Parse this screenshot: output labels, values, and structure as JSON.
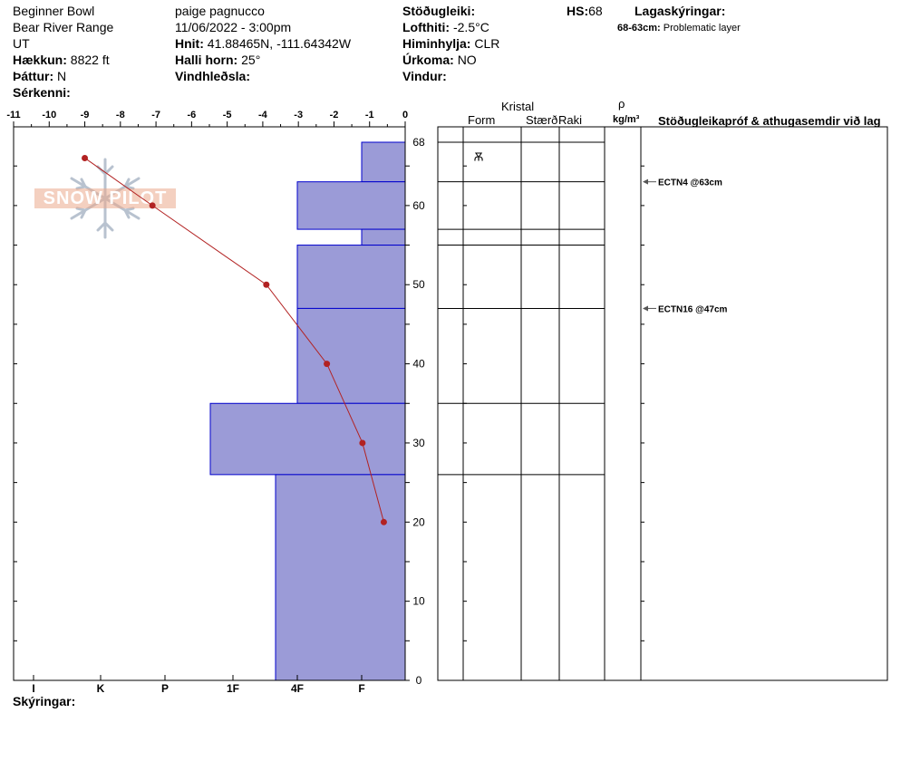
{
  "header": {
    "location": "Beginner Bowl",
    "range": "Bear River Range",
    "state": "UT",
    "elevation_label": "Hækkun:",
    "elevation": "8822 ft",
    "aspect_label": "Þáttur:",
    "aspect": "N",
    "features_label": "Sérkenni:",
    "observer": "paige pagnucco",
    "datetime": "11/06/2022 - 3:00pm",
    "coords_label": "Hnit:",
    "coords": "41.88465N, -111.64342W",
    "slope_label": "Halli horn:",
    "slope": "25°",
    "wind_loading_label": "Vindhleðsla:",
    "stability_label": "Stöðugleiki:",
    "air_temp_label": "Lofthiti:",
    "air_temp": "-2.5°C",
    "sky_label": "Himinhylja:",
    "sky": "CLR",
    "precip_label": "Úrkoma:",
    "precip": "NO",
    "wind_label": "Vindur:",
    "hs_label": "HS:",
    "hs": "68",
    "layer_notes_label": "Lagaskýringar:",
    "layer_note_range": "68-63cm:",
    "layer_note_text": "Problematic layer"
  },
  "logo": {
    "text": "SNOW PILOT"
  },
  "columns": {
    "crystal": "Kristal",
    "form": "Form",
    "size": "Stærð",
    "moisture": "Raki",
    "rho": "ρ",
    "density_unit": "kg/m³",
    "tests": "Stöðugleikapróf & athugasemdir við lag"
  },
  "footer": {
    "notes_label": "Skýringar:"
  },
  "colors": {
    "hardness_fill": "#9b9bd7",
    "hardness_edge": "#0000cc",
    "temp_line": "#b22222"
  },
  "tests": [
    {
      "label": "ECTN4 @63cm",
      "depth": 63
    },
    {
      "label": "ECTN16 @47cm",
      "depth": 47
    }
  ],
  "layer_boundaries": [
    68,
    63,
    57,
    55,
    47,
    35,
    26
  ],
  "grain_symbol": {
    "symbol": "Ѫ",
    "depth": 66
  },
  "chart_data": {
    "type": "line",
    "x_ticks": [
      "-11",
      "-10",
      "-9",
      "-8",
      "-7",
      "-6",
      "-5",
      "-4",
      "-3",
      "-2",
      "-1",
      "0"
    ],
    "y_ticks": [
      "68",
      "60",
      "50",
      "40",
      "30",
      "20",
      "10",
      "0"
    ],
    "hardness_ticks": [
      "I",
      "K",
      "P",
      "1F",
      "4F",
      "F"
    ],
    "xlim": [
      -11,
      0
    ],
    "ylim": [
      0,
      68
    ],
    "temperature_profile": {
      "depth": [
        66,
        60,
        50,
        40,
        30,
        20
      ],
      "temp": [
        -9,
        -7.1,
        -3.9,
        -2.2,
        -1.2,
        -0.6
      ]
    },
    "hardness_layers": [
      {
        "top": 68,
        "bottom": 63,
        "hardness": "F"
      },
      {
        "top": 63,
        "bottom": 57,
        "hardness": "4F"
      },
      {
        "top": 57,
        "bottom": 55,
        "hardness": "F"
      },
      {
        "top": 55,
        "bottom": 47,
        "hardness": "4F"
      },
      {
        "top": 47,
        "bottom": 35,
        "hardness": "4F"
      },
      {
        "top": 35,
        "bottom": 26,
        "hardness": "1F+"
      },
      {
        "top": 26,
        "bottom": 0,
        "hardness": "4F+"
      }
    ]
  }
}
